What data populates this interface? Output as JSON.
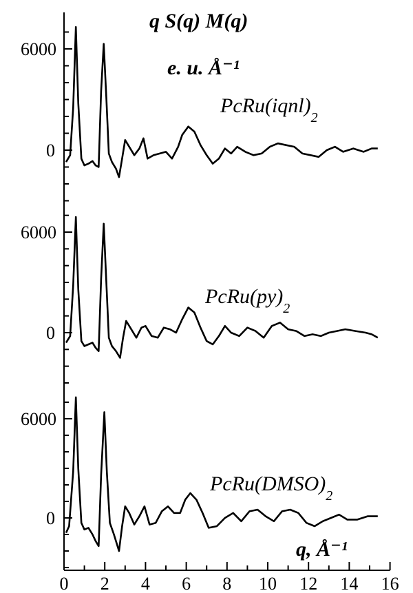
{
  "chart_data": {
    "type": "line",
    "title": "q S(q) M(q)",
    "ylabel_units": "e. u. Å⁻¹",
    "xlabel": "q, Å⁻¹",
    "xlim": [
      0,
      16
    ],
    "x_ticks": [
      0,
      2,
      4,
      6,
      8,
      10,
      12,
      14,
      16
    ],
    "y_ticks_per_panel": [
      0,
      6000
    ],
    "grid": false,
    "layout": "three vertically stacked curves sharing one x axis",
    "series": [
      {
        "name": "PcRu(iqnl)2",
        "label_main": "PcRu(iqnl)",
        "label_sub": "2",
        "points": [
          [
            0.1,
            -700
          ],
          [
            0.3,
            -300
          ],
          [
            0.45,
            2500
          ],
          [
            0.58,
            7300
          ],
          [
            0.7,
            2800
          ],
          [
            0.85,
            -500
          ],
          [
            1.0,
            -900
          ],
          [
            1.2,
            -800
          ],
          [
            1.4,
            -650
          ],
          [
            1.55,
            -900
          ],
          [
            1.7,
            -1000
          ],
          [
            1.82,
            3500
          ],
          [
            1.95,
            6300
          ],
          [
            2.08,
            3000
          ],
          [
            2.2,
            -200
          ],
          [
            2.35,
            -700
          ],
          [
            2.55,
            -1100
          ],
          [
            2.7,
            -1600
          ],
          [
            2.85,
            -500
          ],
          [
            3.0,
            600
          ],
          [
            3.2,
            200
          ],
          [
            3.45,
            -300
          ],
          [
            3.7,
            100
          ],
          [
            3.9,
            700
          ],
          [
            4.1,
            -500
          ],
          [
            4.4,
            -300
          ],
          [
            4.7,
            -200
          ],
          [
            5.0,
            -100
          ],
          [
            5.3,
            -500
          ],
          [
            5.6,
            200
          ],
          [
            5.8,
            900
          ],
          [
            6.1,
            1400
          ],
          [
            6.4,
            1100
          ],
          [
            6.7,
            300
          ],
          [
            7.0,
            -300
          ],
          [
            7.3,
            -800
          ],
          [
            7.6,
            -500
          ],
          [
            7.9,
            100
          ],
          [
            8.2,
            -200
          ],
          [
            8.5,
            200
          ],
          [
            8.9,
            -100
          ],
          [
            9.3,
            -300
          ],
          [
            9.7,
            -200
          ],
          [
            10.1,
            200
          ],
          [
            10.5,
            400
          ],
          [
            10.9,
            300
          ],
          [
            11.3,
            200
          ],
          [
            11.7,
            -200
          ],
          [
            12.1,
            -300
          ],
          [
            12.5,
            -400
          ],
          [
            12.9,
            0
          ],
          [
            13.3,
            200
          ],
          [
            13.7,
            -100
          ],
          [
            14.2,
            100
          ],
          [
            14.7,
            -100
          ],
          [
            15.1,
            100
          ],
          [
            15.4,
            100
          ]
        ]
      },
      {
        "name": "PcRu(py)2",
        "label_main": "PcRu(py)",
        "label_sub": "2",
        "points": [
          [
            0.1,
            -600
          ],
          [
            0.3,
            -200
          ],
          [
            0.45,
            2800
          ],
          [
            0.58,
            6900
          ],
          [
            0.7,
            2600
          ],
          [
            0.85,
            -500
          ],
          [
            1.0,
            -800
          ],
          [
            1.2,
            -700
          ],
          [
            1.4,
            -600
          ],
          [
            1.55,
            -900
          ],
          [
            1.7,
            -1100
          ],
          [
            1.82,
            3200
          ],
          [
            1.95,
            6500
          ],
          [
            2.08,
            2900
          ],
          [
            2.2,
            -300
          ],
          [
            2.35,
            -800
          ],
          [
            2.55,
            -1100
          ],
          [
            2.75,
            -1500
          ],
          [
            2.9,
            -300
          ],
          [
            3.05,
            700
          ],
          [
            3.3,
            200
          ],
          [
            3.55,
            -300
          ],
          [
            3.8,
            300
          ],
          [
            4.0,
            400
          ],
          [
            4.3,
            -200
          ],
          [
            4.6,
            -300
          ],
          [
            4.9,
            300
          ],
          [
            5.2,
            200
          ],
          [
            5.5,
            0
          ],
          [
            5.8,
            800
          ],
          [
            6.1,
            1500
          ],
          [
            6.4,
            1200
          ],
          [
            6.7,
            300
          ],
          [
            7.0,
            -500
          ],
          [
            7.3,
            -700
          ],
          [
            7.6,
            -200
          ],
          [
            7.9,
            400
          ],
          [
            8.2,
            0
          ],
          [
            8.6,
            -200
          ],
          [
            9.0,
            300
          ],
          [
            9.4,
            100
          ],
          [
            9.8,
            -300
          ],
          [
            10.2,
            400
          ],
          [
            10.6,
            600
          ],
          [
            11.0,
            200
          ],
          [
            11.4,
            100
          ],
          [
            11.8,
            -200
          ],
          [
            12.2,
            -100
          ],
          [
            12.6,
            -200
          ],
          [
            13.0,
            0
          ],
          [
            13.4,
            100
          ],
          [
            13.8,
            200
          ],
          [
            14.3,
            100
          ],
          [
            14.8,
            0
          ],
          [
            15.1,
            -100
          ],
          [
            15.4,
            -300
          ]
        ]
      },
      {
        "name": "PcRu(DMSO)2",
        "label_main": "PcRu(DMSO)",
        "label_sub": "2",
        "points": [
          [
            0.1,
            -900
          ],
          [
            0.25,
            -500
          ],
          [
            0.45,
            2800
          ],
          [
            0.58,
            7300
          ],
          [
            0.7,
            3000
          ],
          [
            0.85,
            -300
          ],
          [
            1.0,
            -700
          ],
          [
            1.2,
            -600
          ],
          [
            1.4,
            -1000
          ],
          [
            1.55,
            -1400
          ],
          [
            1.7,
            -1700
          ],
          [
            1.82,
            2600
          ],
          [
            1.98,
            6400
          ],
          [
            2.1,
            2800
          ],
          [
            2.25,
            -300
          ],
          [
            2.45,
            -1000
          ],
          [
            2.7,
            -2000
          ],
          [
            2.85,
            -500
          ],
          [
            3.0,
            700
          ],
          [
            3.2,
            300
          ],
          [
            3.45,
            -400
          ],
          [
            3.7,
            100
          ],
          [
            3.95,
            700
          ],
          [
            4.2,
            -400
          ],
          [
            4.5,
            -300
          ],
          [
            4.8,
            400
          ],
          [
            5.1,
            700
          ],
          [
            5.4,
            300
          ],
          [
            5.7,
            300
          ],
          [
            5.95,
            1100
          ],
          [
            6.2,
            1500
          ],
          [
            6.5,
            1100
          ],
          [
            6.8,
            300
          ],
          [
            7.1,
            -600
          ],
          [
            7.5,
            -500
          ],
          [
            7.9,
            0
          ],
          [
            8.3,
            300
          ],
          [
            8.7,
            -200
          ],
          [
            9.1,
            400
          ],
          [
            9.5,
            500
          ],
          [
            9.9,
            100
          ],
          [
            10.3,
            -200
          ],
          [
            10.7,
            400
          ],
          [
            11.1,
            500
          ],
          [
            11.5,
            300
          ],
          [
            11.9,
            -300
          ],
          [
            12.3,
            -500
          ],
          [
            12.7,
            -200
          ],
          [
            13.1,
            0
          ],
          [
            13.5,
            200
          ],
          [
            13.9,
            -100
          ],
          [
            14.4,
            -100
          ],
          [
            14.9,
            100
          ],
          [
            15.4,
            100
          ]
        ]
      }
    ]
  }
}
